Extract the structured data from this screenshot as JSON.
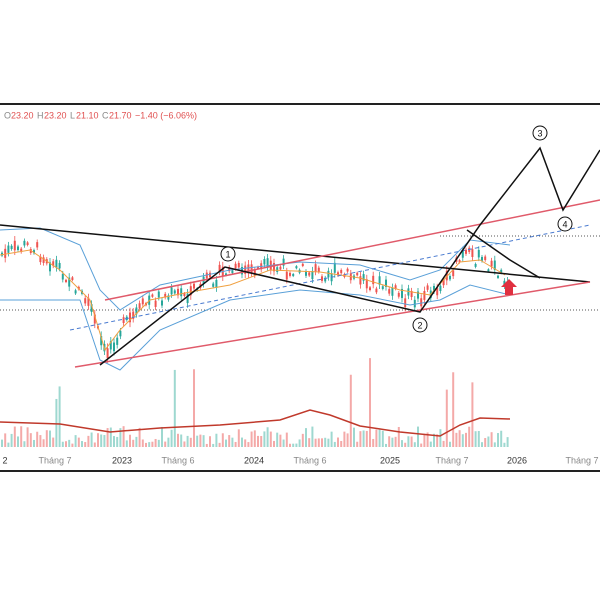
{
  "header": {
    "o_label": "O",
    "o": "23.20",
    "h_label": "H",
    "h": "23.20",
    "l_label": "L",
    "l": "21.10",
    "c_label": "C",
    "c": "21.70",
    "change": "−1.40 (−6.06%)"
  },
  "x_axis": [
    "2",
    "Tháng 7",
    "2023",
    "Tháng 6",
    "2024",
    "Tháng 6",
    "2025",
    "Tháng 7",
    "2026",
    "Tháng 7"
  ],
  "waves": [
    "1",
    "2",
    "3",
    "4"
  ]
}
